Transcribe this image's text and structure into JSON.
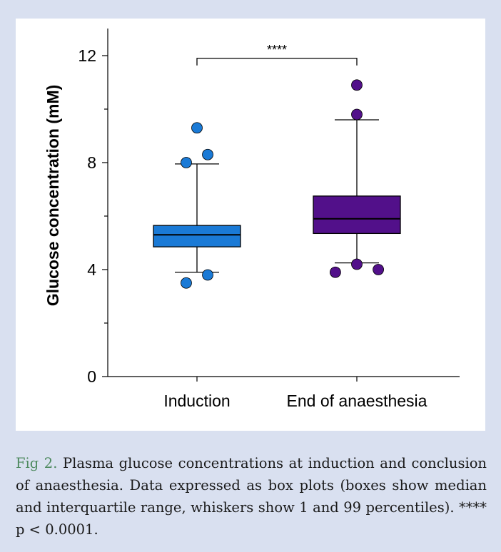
{
  "chart_data": {
    "type": "box",
    "ylabel": "Glucose concentration (mM)",
    "ylim": [
      0,
      13.2
    ],
    "yticks": [
      "0",
      "4",
      "8",
      "12"
    ],
    "ytick_values": [
      0,
      4,
      8,
      12
    ],
    "minor_ticks": [
      2,
      6,
      10
    ],
    "categories": [
      "Induction",
      "End of anaesthesia"
    ],
    "series": [
      {
        "category": "Induction",
        "color": "#1a7ad6",
        "whisker_low": 3.9,
        "q1": 4.85,
        "median": 5.3,
        "q3": 5.65,
        "whisker_high": 7.95,
        "outliers": [
          [
            -0.35,
            3.5
          ],
          [
            0.35,
            3.8
          ],
          [
            -0.35,
            8.0
          ],
          [
            0.35,
            8.3
          ],
          [
            0,
            9.3
          ]
        ]
      },
      {
        "category": "End of anaesthesia",
        "color": "#52108a",
        "whisker_low": 4.25,
        "q1": 5.35,
        "median": 5.9,
        "q3": 6.75,
        "whisker_high": 9.6,
        "outliers": [
          [
            -0.7,
            3.9
          ],
          [
            0,
            4.2
          ],
          [
            0.7,
            4.0
          ],
          [
            0,
            9.8
          ],
          [
            0,
            10.9
          ]
        ]
      }
    ],
    "significance": {
      "label": "****",
      "y": 11.9
    }
  },
  "caption": {
    "figure_label": "Fig 2.",
    "text": " Plasma glucose concentrations at induction and conclusion of anaesthesia. Data expressed as box plots (boxes show median and interquartile range, whiskers show 1 and 99 percentiles). **** p < 0.0001."
  }
}
